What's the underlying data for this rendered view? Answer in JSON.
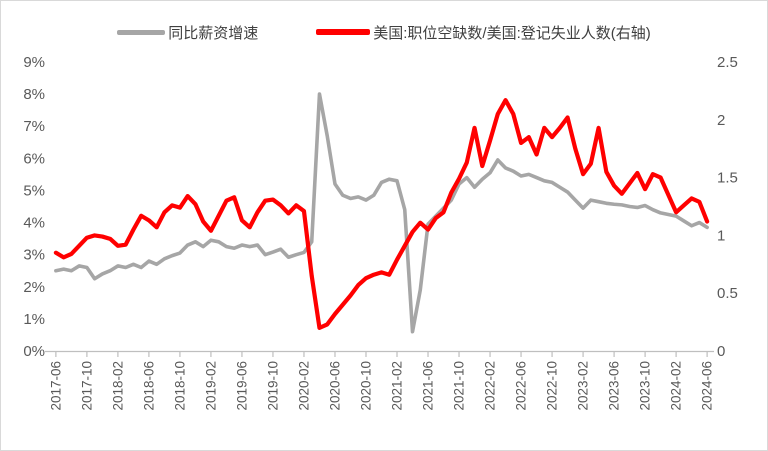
{
  "figure": {
    "background": "#ffffff",
    "border_color": "#d9d9d9"
  },
  "legend": {
    "items": [
      {
        "label": "同比薪资增速",
        "color": "#a6a6a6"
      },
      {
        "label": "美国:职位空缺数/美国:登记失业人数(右轴)",
        "color": "#ff0000"
      }
    ]
  },
  "chart_data": {
    "type": "line",
    "title": "",
    "grid": false,
    "legend_position": "top",
    "x": [
      "2017-06",
      "2017-07",
      "2017-08",
      "2017-09",
      "2017-10",
      "2017-11",
      "2017-12",
      "2018-01",
      "2018-02",
      "2018-03",
      "2018-04",
      "2018-05",
      "2018-06",
      "2018-07",
      "2018-08",
      "2018-09",
      "2018-10",
      "2018-11",
      "2018-12",
      "2019-01",
      "2019-02",
      "2019-03",
      "2019-04",
      "2019-05",
      "2019-06",
      "2019-07",
      "2019-08",
      "2019-09",
      "2019-10",
      "2019-11",
      "2019-12",
      "2020-01",
      "2020-02",
      "2020-03",
      "2020-04",
      "2020-05",
      "2020-06",
      "2020-07",
      "2020-08",
      "2020-09",
      "2020-10",
      "2020-11",
      "2020-12",
      "2021-01",
      "2021-02",
      "2021-03",
      "2021-04",
      "2021-05",
      "2021-06",
      "2021-07",
      "2021-08",
      "2021-09",
      "2021-10",
      "2021-11",
      "2021-12",
      "2022-01",
      "2022-02",
      "2022-03",
      "2022-04",
      "2022-05",
      "2022-06",
      "2022-07",
      "2022-08",
      "2022-09",
      "2022-10",
      "2022-11",
      "2022-12",
      "2023-01",
      "2023-02",
      "2023-03",
      "2023-04",
      "2023-05",
      "2023-06",
      "2023-07",
      "2023-08",
      "2023-09",
      "2023-10",
      "2023-11",
      "2023-12",
      "2024-01",
      "2024-02",
      "2024-03",
      "2024-04",
      "2024-05",
      "2024-06"
    ],
    "x_tick_labels": [
      "2017-06",
      "2017-10",
      "2018-02",
      "2018-06",
      "2018-10",
      "2019-02",
      "2019-06",
      "2019-10",
      "2020-02",
      "2020-06",
      "2020-10",
      "2021-02",
      "2021-06",
      "2021-10",
      "2022-02",
      "2022-06",
      "2022-10",
      "2023-02",
      "2023-06",
      "2023-10",
      "2024-02",
      "2024-06"
    ],
    "x_tick_every": 4,
    "left_axis": {
      "min": 0,
      "max": 9,
      "tick_labels": [
        "0%",
        "1%",
        "2%",
        "3%",
        "4%",
        "5%",
        "6%",
        "7%",
        "8%",
        "9%"
      ],
      "tick_values": [
        0,
        1,
        2,
        3,
        4,
        5,
        6,
        7,
        8,
        9
      ]
    },
    "right_axis": {
      "min": 0,
      "max": 2.5,
      "tick_labels": [
        "0",
        "0.5",
        "1",
        "1.5",
        "2",
        "2.5"
      ],
      "tick_values": [
        0,
        0.5,
        1,
        1.5,
        2,
        2.5
      ]
    },
    "series": [
      {
        "name": "同比薪资增速",
        "axis": "left",
        "color": "#a6a6a6",
        "width": 3.6,
        "values": [
          2.5,
          2.55,
          2.5,
          2.65,
          2.6,
          2.25,
          2.4,
          2.5,
          2.65,
          2.6,
          2.7,
          2.6,
          2.8,
          2.7,
          2.87,
          2.97,
          3.05,
          3.3,
          3.4,
          3.25,
          3.45,
          3.4,
          3.25,
          3.2,
          3.3,
          3.25,
          3.3,
          3.0,
          3.08,
          3.17,
          2.92,
          3.0,
          3.07,
          3.4,
          8.0,
          6.7,
          5.2,
          4.85,
          4.75,
          4.8,
          4.7,
          4.85,
          5.25,
          5.35,
          5.3,
          4.4,
          0.6,
          1.9,
          3.95,
          4.2,
          4.45,
          4.7,
          5.2,
          5.4,
          5.1,
          5.35,
          5.55,
          5.95,
          5.7,
          5.6,
          5.45,
          5.5,
          5.4,
          5.3,
          5.25,
          5.1,
          4.95,
          4.7,
          4.45,
          4.7,
          4.65,
          4.6,
          4.57,
          4.55,
          4.5,
          4.47,
          4.53,
          4.4,
          4.3,
          4.25,
          4.2,
          4.05,
          3.9,
          4.0,
          3.85
        ]
      },
      {
        "name": "美国:职位空缺数/美国:登记失业人数(右轴)",
        "axis": "right",
        "color": "#ff0000",
        "width": 4.2,
        "values": [
          0.85,
          0.81,
          0.84,
          0.91,
          0.98,
          1.0,
          0.99,
          0.97,
          0.91,
          0.92,
          1.05,
          1.17,
          1.13,
          1.07,
          1.2,
          1.26,
          1.24,
          1.34,
          1.27,
          1.12,
          1.04,
          1.17,
          1.3,
          1.33,
          1.13,
          1.07,
          1.2,
          1.3,
          1.31,
          1.26,
          1.19,
          1.26,
          1.21,
          0.65,
          0.2,
          0.23,
          0.32,
          0.4,
          0.48,
          0.57,
          0.63,
          0.66,
          0.68,
          0.66,
          0.79,
          0.91,
          1.03,
          1.11,
          1.05,
          1.15,
          1.2,
          1.37,
          1.49,
          1.63,
          1.93,
          1.6,
          1.82,
          2.05,
          2.17,
          2.05,
          1.8,
          1.85,
          1.7,
          1.93,
          1.85,
          1.93,
          2.02,
          1.75,
          1.53,
          1.62,
          1.93,
          1.55,
          1.43,
          1.36,
          1.45,
          1.54,
          1.4,
          1.53,
          1.5,
          1.35,
          1.2,
          1.26,
          1.32,
          1.29,
          1.12
        ]
      }
    ],
    "axis_color": "#bfbfbf",
    "tick_text_color": "#595959"
  }
}
